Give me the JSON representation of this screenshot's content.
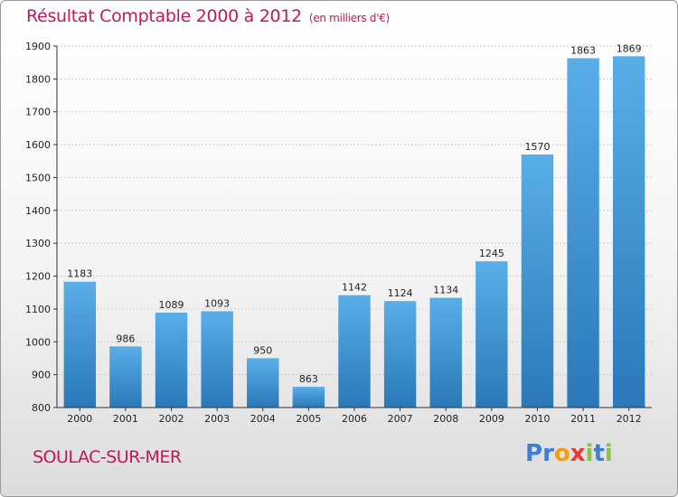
{
  "title": "Résultat Comptable 2000 à 2012",
  "unit": "(en milliers d'€)",
  "place": "SOULAC-SUR-MER",
  "logo": {
    "text": "Proxiti",
    "letters": [
      "P",
      "r",
      "o",
      "x",
      "i",
      "t",
      "i"
    ],
    "colors": [
      "#3a7fd5",
      "#3a7fd5",
      "#f39c12",
      "#e53935",
      "#8bc34a",
      "#3a7fd5",
      "#8bc34a"
    ]
  },
  "colors": {
    "title": "#c2185b",
    "bar_top": "#5aaee8",
    "bar_bottom": "#2a78b8",
    "grid": "#cccccc",
    "axis": "#333333"
  },
  "chart_data": {
    "type": "bar",
    "categories": [
      "2000",
      "2001",
      "2002",
      "2003",
      "2004",
      "2005",
      "2006",
      "2007",
      "2008",
      "2009",
      "2010",
      "2011",
      "2012"
    ],
    "values": [
      1183,
      986,
      1089,
      1093,
      950,
      863,
      1142,
      1124,
      1134,
      1245,
      1570,
      1863,
      1869
    ],
    "yticks": [
      "800",
      "900",
      "1000",
      "1100",
      "1200",
      "1300",
      "1400",
      "1500",
      "1600",
      "1700",
      "1800",
      "1900"
    ],
    "ylim": [
      800,
      1900
    ],
    "grid": true,
    "title": "Résultat Comptable 2000 à 2012",
    "ylabel": "",
    "xlabel": ""
  }
}
